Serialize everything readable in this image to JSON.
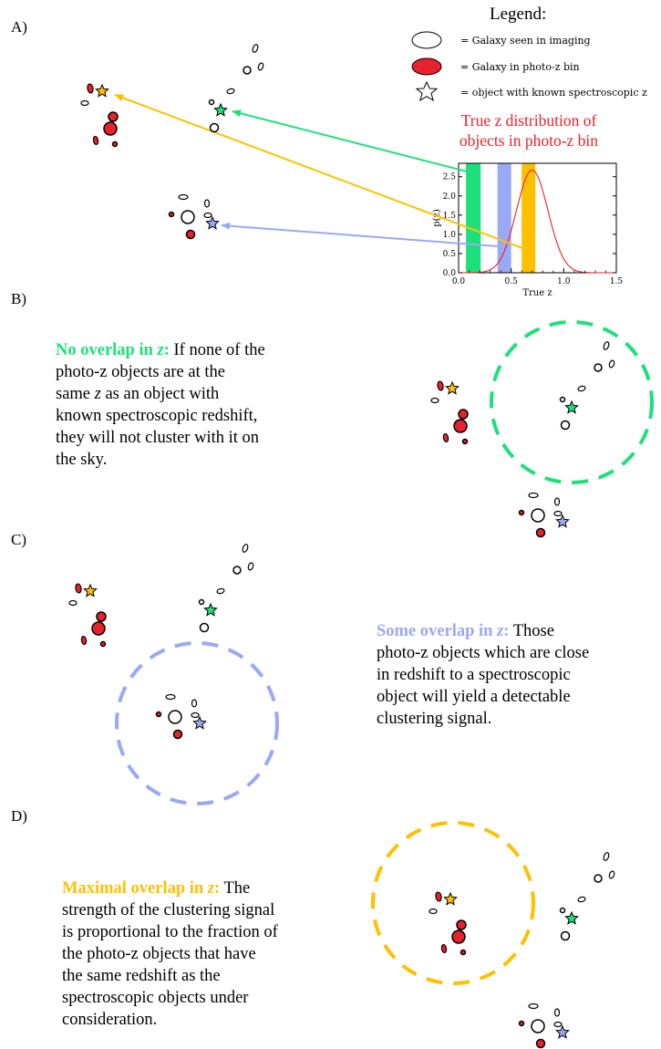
{
  "panels": {
    "a": "A)",
    "b": "B)",
    "c": "C)",
    "d": "D)"
  },
  "legend": {
    "title": "Legend:",
    "items": [
      {
        "symbol": "white-ellipse",
        "text": "= Galaxy seen in imaging"
      },
      {
        "symbol": "red-ellipse",
        "text": "= Galaxy in photo-z bin"
      },
      {
        "symbol": "star",
        "text": "= object with known spectroscopic z"
      }
    ]
  },
  "distribution": {
    "title_line1": "True z distribution of",
    "title_line2": "objects in photo-z bin"
  },
  "chart_data": {
    "type": "line",
    "xlabel": "True z",
    "ylabel": "p(z)",
    "xlim": [
      0.0,
      1.5
    ],
    "ylim": [
      0.0,
      2.85
    ],
    "xticks": [
      "0.0",
      "0.5",
      "1.0",
      "1.5"
    ],
    "yticks": [
      "0.0",
      "0.5",
      "1.0",
      "1.5",
      "2.0",
      "2.5"
    ],
    "bands": [
      {
        "name": "green",
        "color": "#1ee07a",
        "from": 0.07,
        "to": 0.21
      },
      {
        "name": "blue",
        "color": "#9aa9f3",
        "from": 0.37,
        "to": 0.5
      },
      {
        "name": "orange",
        "color": "#ffc000",
        "from": 0.6,
        "to": 0.73
      }
    ],
    "curve": {
      "color": "#e8222c",
      "mean": 0.7,
      "sigma": 0.15,
      "peak": 2.67
    }
  },
  "colors": {
    "green": "#1ee07a",
    "blue": "#9aa9f3",
    "orange": "#ffc000",
    "red": "#e8222c"
  },
  "text_b": {
    "highlight": "No overlap in ",
    "hz": "z",
    "colon": ":",
    "line1": " If none of the",
    "line2": "photo-z objects are at the",
    "line3a": "same ",
    "line3z": "z",
    "line3b": " as an object with",
    "line4": "known spectroscopic redshift,",
    "line5": "they will not cluster with it on",
    "line6": "the sky."
  },
  "text_c": {
    "highlight": "Some overlap in ",
    "hz": "z",
    "colon": ":",
    "line1": " Those",
    "line2": "photo-z objects which are close",
    "line3": "in redshift to a spectroscopic",
    "line4": "object will yield a detectable",
    "line5": "clustering signal."
  },
  "text_d": {
    "highlight": "Maximal overlap in ",
    "hz": "z",
    "colon": ":",
    "line1": " The",
    "line2": "strength of the clustering signal",
    "line3": "is proportional to the fraction of",
    "line4": "the photo-z objects that have",
    "line5": "the same redshift as the",
    "line6": "spectroscopic objects under",
    "line7": "consideration."
  }
}
